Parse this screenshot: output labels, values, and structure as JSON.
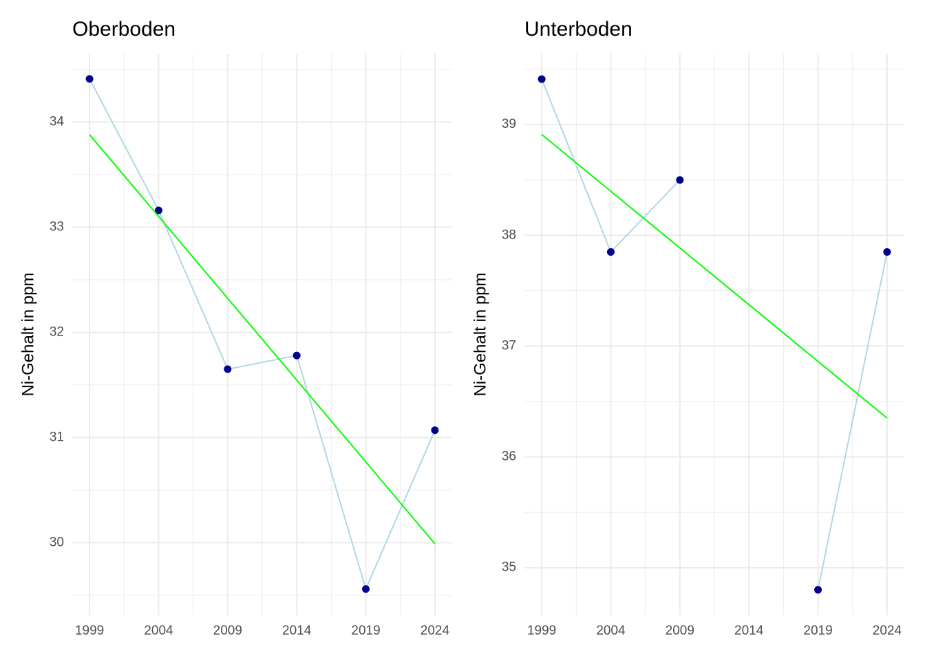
{
  "chart_data": [
    {
      "type": "line",
      "title": "Oberboden",
      "y_label": "Ni-Gehalt in ppm",
      "x": [
        1999,
        2004,
        2009,
        2014,
        2019,
        2024
      ],
      "series": [
        {
          "color": "#add8e6",
          "marker_color": "#00008b",
          "values": [
            34.41,
            33.16,
            31.65,
            31.78,
            29.56,
            31.07
          ]
        },
        {
          "color": "#00ff00",
          "x": [
            1999,
            2024
          ],
          "values": [
            33.88,
            29.99
          ]
        }
      ],
      "xlim": [
        1997.75,
        2025.25
      ],
      "xticks": [
        1999,
        2004,
        2009,
        2014,
        2019,
        2024
      ],
      "ylim": [
        29.31,
        34.65
      ],
      "yticks": [
        30,
        31,
        32,
        33,
        34
      ],
      "grid": true
    },
    {
      "type": "line",
      "title": "Unterboden",
      "y_label": "Ni-Gehalt in ppm",
      "x": [
        1999,
        2004,
        2009,
        2014,
        2019,
        2024
      ],
      "series": [
        {
          "color": "#add8e6",
          "marker_color": "#00008b",
          "values": [
            39.41,
            37.85,
            38.5,
            null,
            34.8,
            37.85
          ]
        },
        {
          "color": "#00ff00",
          "x": [
            1999,
            2024
          ],
          "values": [
            38.91,
            36.35
          ]
        }
      ],
      "xlim": [
        1997.75,
        2025.25
      ],
      "xticks": [
        1999,
        2004,
        2009,
        2014,
        2019,
        2024
      ],
      "ylim": [
        34.57,
        39.64
      ],
      "yticks": [
        35,
        36,
        37,
        38,
        39
      ],
      "grid": true
    }
  ]
}
